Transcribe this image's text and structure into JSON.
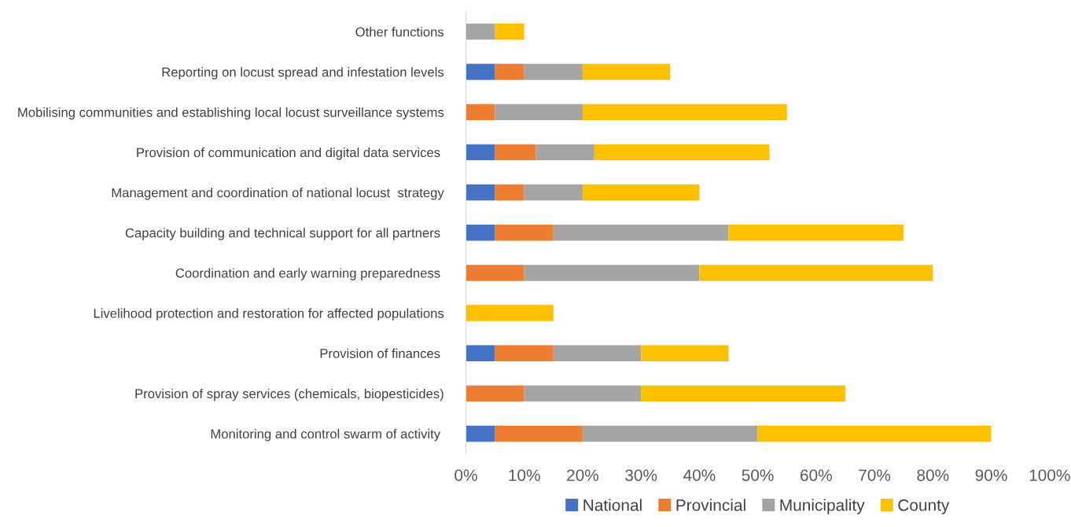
{
  "chart_data": {
    "type": "bar",
    "orientation": "horizontal",
    "stacked": true,
    "categories": [
      "Other functions",
      "Reporting on locust spread and infestation levels",
      "Mobilising communities and establishing local locust surveillance systems",
      "Provision of communication and digital data services ",
      "Management and coordination of national locust  strategy",
      "Capacity building and technical support for all partners ",
      "Coordination and early warning preparedness ",
      "Livelihood protection and restoration for affected populations",
      "Provision of finances ",
      "Provision of spray services (chemicals, biopesticides)",
      "Monitoring and control swarm of activity "
    ],
    "series": [
      {
        "name": "National",
        "color": "#4472c4",
        "values": [
          0,
          5,
          0,
          5,
          5,
          5,
          0,
          0,
          5,
          0,
          5
        ]
      },
      {
        "name": "Provincial",
        "color": "#ed7d31",
        "values": [
          0,
          5,
          5,
          7,
          5,
          10,
          10,
          0,
          10,
          10,
          15
        ]
      },
      {
        "name": "Municipality",
        "color": "#a5a5a5",
        "values": [
          5,
          10,
          15,
          10,
          10,
          30,
          30,
          0,
          15,
          20,
          30
        ]
      },
      {
        "name": "County",
        "color": "#ffc000",
        "values": [
          5,
          15,
          35,
          30,
          20,
          30,
          40,
          15,
          15,
          35,
          40
        ]
      }
    ],
    "xlim": [
      0,
      100
    ],
    "xticks": [
      {
        "value": 0,
        "label": "0%"
      },
      {
        "value": 10,
        "label": "10%"
      },
      {
        "value": 20,
        "label": "20%"
      },
      {
        "value": 30,
        "label": "30%"
      },
      {
        "value": 40,
        "label": "40%"
      },
      {
        "value": 50,
        "label": "50%"
      },
      {
        "value": 60,
        "label": "60%"
      },
      {
        "value": 70,
        "label": "70%"
      },
      {
        "value": 80,
        "label": "80%"
      },
      {
        "value": 90,
        "label": "90%"
      },
      {
        "value": 100,
        "label": "100%"
      }
    ],
    "grid": false,
    "legend": "bottom"
  }
}
